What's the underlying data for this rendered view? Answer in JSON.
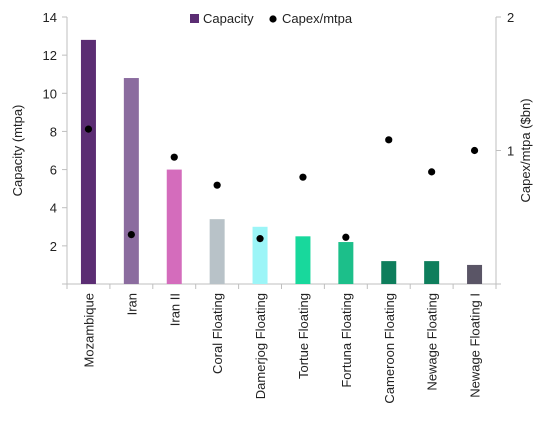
{
  "chart_data": {
    "type": "bar",
    "categories": [
      "Mozambique",
      "Iran",
      "Iran II",
      "Coral Floating",
      "Damerjog Floating",
      "Tortue Floating",
      "Fortuna Floating",
      "Cameroon Floating",
      "Newage Floating",
      "Newage Floating I"
    ],
    "series": [
      {
        "name": "Capacity",
        "type": "bar",
        "axis": "left",
        "values": [
          12.8,
          10.8,
          6.0,
          3.4,
          3.0,
          2.5,
          2.2,
          1.2,
          1.2,
          1.0
        ],
        "colors": [
          "#5b2d73",
          "#8b6c9f",
          "#d46cbc",
          "#b8c2c8",
          "#9cf5f7",
          "#18d89c",
          "#1cbf8a",
          "#0e7e5c",
          "#0e7e5c",
          "#5a5566"
        ]
      },
      {
        "name": "Capex/mtpa",
        "type": "scatter",
        "axis": "right",
        "values": [
          1.16,
          0.37,
          0.95,
          0.74,
          0.34,
          0.8,
          0.35,
          1.08,
          0.84,
          1.0
        ],
        "color": "#000000"
      }
    ],
    "ylabel": "Capacity (mtpa)",
    "y2label": "Capex/mtpa ($bn)",
    "ylim": [
      0,
      14
    ],
    "y2lim": [
      0,
      2
    ],
    "yticks": [
      2,
      4,
      6,
      8,
      10,
      12,
      14
    ],
    "y2ticks": [
      1,
      2
    ],
    "grid": false,
    "legend_position": "top-center"
  }
}
